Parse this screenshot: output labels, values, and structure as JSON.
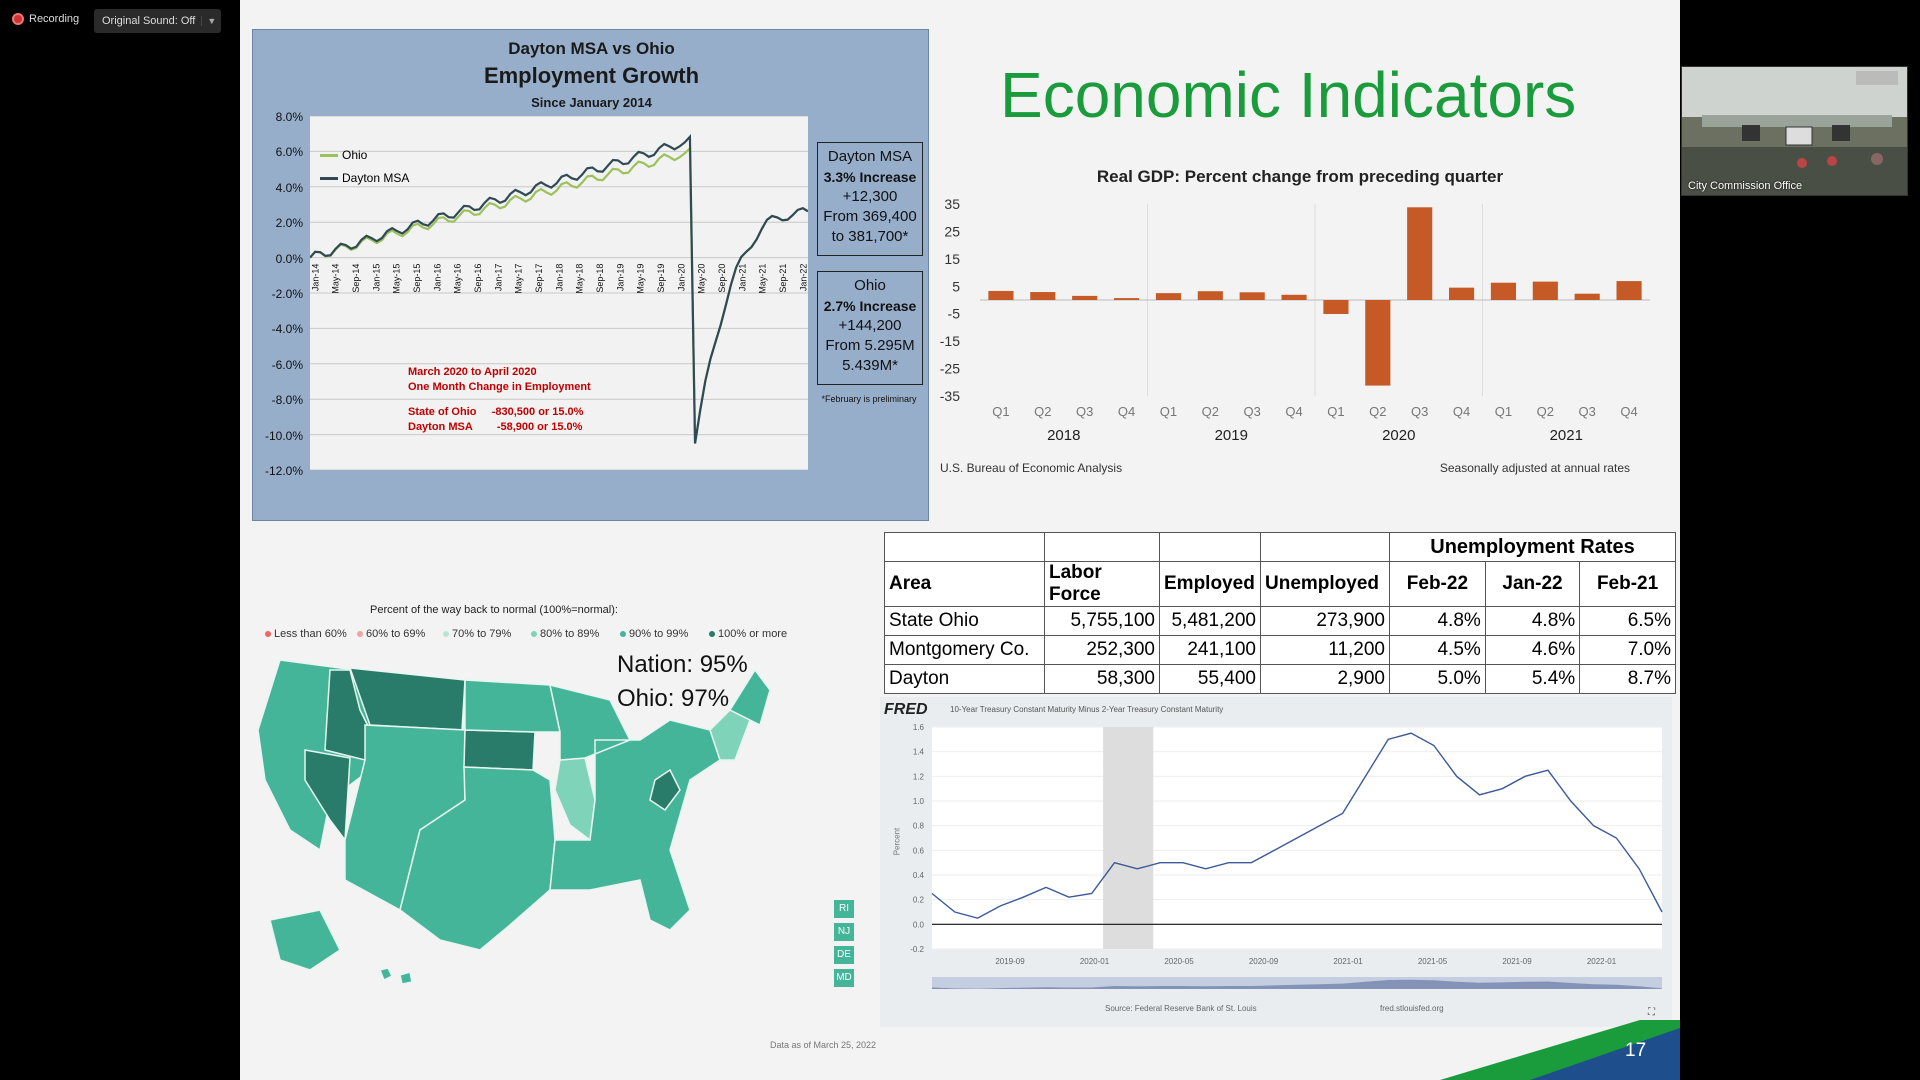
{
  "app": {
    "recording": "Recording",
    "sound": "Original Sound: Off",
    "video_label": "City Commission Office"
  },
  "slide": {
    "title": "Economic Indicators",
    "page_number": "17"
  },
  "employment": {
    "title1": "Dayton MSA vs Ohio",
    "title2": "Employment Growth",
    "title3": "Since January 2014",
    "yticks": [
      "8.0%",
      "6.0%",
      "4.0%",
      "2.0%",
      "0.0%",
      "-2.0%",
      "-4.0%",
      "-6.0%",
      "-8.0%",
      "-10.0%",
      "-12.0%"
    ],
    "xticks": [
      "Jan-14",
      "May-14",
      "Sep-14",
      "Jan-15",
      "May-15",
      "Sep-15",
      "Jan-16",
      "May-16",
      "Sep-16",
      "Jan-17",
      "May-17",
      "Sep-17",
      "Jan-18",
      "May-18",
      "Sep-18",
      "Jan-19",
      "May-19",
      "Sep-19",
      "Jan-20",
      "May-20",
      "Sep-20",
      "Jan-21",
      "May-21",
      "Sep-21",
      "Jan-22"
    ],
    "legend_ohio": "Ohio",
    "legend_dayton": "Dayton MSA",
    "note1": "March 2020 to April 2020",
    "note2": "One Month Change in Employment",
    "note3": "State of Ohio     -830,500 or 15.0%",
    "note4": "Dayton MSA        -58,900 or 15.0%",
    "box1": [
      "Dayton MSA",
      "3.3% Increase",
      "+12,300",
      "From 369,400",
      "to 381,700*"
    ],
    "box2": [
      "Ohio",
      "2.7% Increase",
      "+144,200",
      "From 5.295M",
      "5.439M*"
    ],
    "footnote": "*February is preliminary",
    "colors": {
      "ohio": "#9bc15a",
      "dayton": "#2f4a55",
      "note": "#c00000"
    }
  },
  "chart_data": [
    {
      "type": "bar",
      "title": "Real GDP:  Percent change from preceding quarter",
      "categories": [
        "Q1",
        "Q2",
        "Q3",
        "Q4",
        "Q1",
        "Q2",
        "Q3",
        "Q4",
        "Q1",
        "Q2",
        "Q3",
        "Q4",
        "Q1",
        "Q2",
        "Q3",
        "Q4"
      ],
      "groups": [
        "2018",
        "2019",
        "2020",
        "2021"
      ],
      "values": [
        3.3,
        2.9,
        1.5,
        0.7,
        2.5,
        3.2,
        2.8,
        1.9,
        -5.1,
        -31.2,
        33.8,
        4.5,
        6.3,
        6.7,
        2.3,
        6.9
      ],
      "yticks": [
        "35",
        "25",
        "15",
        "5",
        "-5",
        "-15",
        "-25",
        "-35"
      ],
      "ylim": [
        -35,
        35
      ],
      "color": "#c55a26",
      "source": "U.S. Bureau of Economic Analysis",
      "note": "Seasonally adjusted at annual rates"
    },
    {
      "type": "line",
      "title": "10-Year Treasury Constant Maturity Minus 2-Year Treasury Constant Maturity",
      "ylabel": "Percent",
      "yticks": [
        "1.6",
        "1.4",
        "1.2",
        "1.0",
        "0.8",
        "0.6",
        "0.4",
        "0.2",
        "0.0",
        "-0.2"
      ],
      "xticks": [
        "2019-09",
        "2020-01",
        "2020-05",
        "2020-09",
        "2021-01",
        "2021-05",
        "2021-09",
        "2022-01"
      ],
      "ylim": [
        -0.2,
        1.6
      ],
      "x": [
        "2019-07",
        "2019-08",
        "2019-09",
        "2019-10",
        "2019-11",
        "2019-12",
        "2020-01",
        "2020-02",
        "2020-03",
        "2020-04",
        "2020-05",
        "2020-06",
        "2020-07",
        "2020-08",
        "2020-09",
        "2020-10",
        "2020-11",
        "2020-12",
        "2021-01",
        "2021-02",
        "2021-03",
        "2021-04",
        "2021-05",
        "2021-06",
        "2021-07",
        "2021-08",
        "2021-09",
        "2021-10",
        "2021-11",
        "2021-12",
        "2022-01",
        "2022-02",
        "2022-03"
      ],
      "values": [
        0.25,
        0.1,
        0.05,
        0.15,
        0.22,
        0.3,
        0.22,
        0.25,
        0.5,
        0.45,
        0.5,
        0.5,
        0.45,
        0.5,
        0.5,
        0.6,
        0.7,
        0.8,
        0.9,
        1.2,
        1.5,
        1.55,
        1.45,
        1.2,
        1.05,
        1.1,
        1.2,
        1.25,
        1.0,
        0.8,
        0.7,
        0.45,
        0.1
      ],
      "source": "Source: Federal Reserve Bank of St. Louis",
      "site": "fred.stlouisfed.org",
      "brand": "FRED"
    }
  ],
  "unemployment": {
    "header": "Unemployment Rates",
    "columns": [
      "Area",
      "Labor Force",
      "Employed",
      "Unemployed",
      "Feb-22",
      "Jan-22",
      "Feb-21"
    ],
    "rows": [
      [
        "State Ohio",
        "5,755,100",
        "5,481,200",
        "273,900",
        "4.8%",
        "4.8%",
        "6.5%"
      ],
      [
        "Montgomery Co.",
        "252,300",
        "241,100",
        "11,200",
        "4.5%",
        "4.6%",
        "7.0%"
      ],
      [
        "Dayton",
        "58,300",
        "55,400",
        "2,900",
        "5.0%",
        "5.4%",
        "8.7%"
      ]
    ]
  },
  "map": {
    "caption": "Percent of the way back to normal (100%=normal):",
    "legend": [
      {
        "label": "Less than 60%",
        "color": "#e66"
      },
      {
        "label": "60% to 69%",
        "color": "#f2a3a3"
      },
      {
        "label": "70% to 79%",
        "color": "#b9e6d2"
      },
      {
        "label": "80% to 89%",
        "color": "#7ed3b9"
      },
      {
        "label": "90% to 99%",
        "color": "#45b59a"
      },
      {
        "label": "100% or more",
        "color": "#2a7c6a"
      }
    ],
    "nation": "Nation: 95%",
    "ohio": "Ohio: 97%",
    "small_states": [
      "RI",
      "NJ",
      "DE",
      "MD"
    ],
    "date": "Data as of March 25, 2022"
  }
}
